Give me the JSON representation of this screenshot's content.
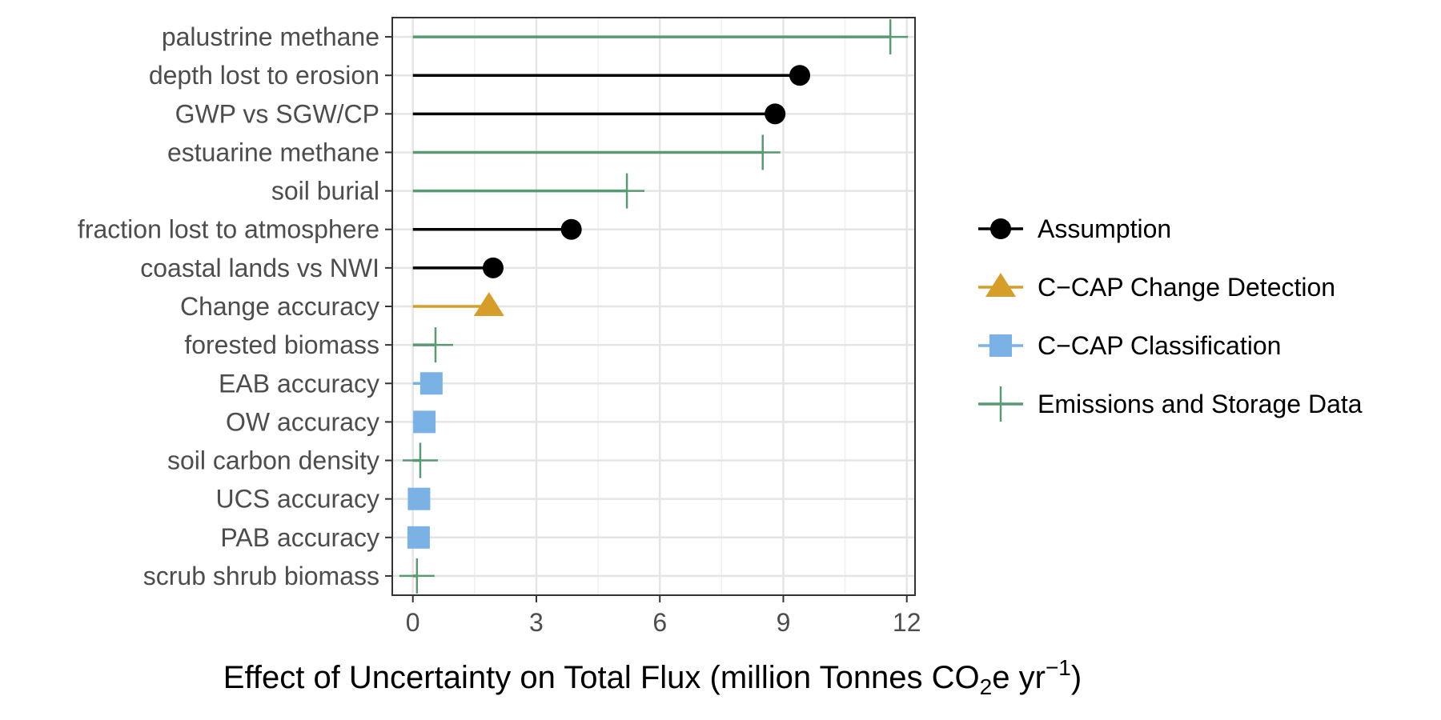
{
  "chart_data": {
    "type": "lollipop",
    "title": "",
    "xlabel": "Effect of Uncertainty on Total Flux (million Tonnes CO2e yr−1)",
    "xlabel_parts": {
      "before": "Effect of Uncertainty on Total Flux (million Tonnes CO",
      "sub": "2",
      "middle": "e yr",
      "sup": "−1",
      "after": ")"
    },
    "ylabel": "",
    "xlim": [
      -0.5,
      12.2
    ],
    "xticks": [
      0,
      3,
      6,
      9,
      12
    ],
    "grid": true,
    "legend_position": "right",
    "categories": [
      "palustrine methane",
      "depth lost to erosion",
      "GWP vs SGW/CP",
      "estuarine methane",
      "soil burial",
      "fraction lost to atmosphere",
      "coastal lands vs NWI",
      "Change accuracy",
      "forested biomass",
      "EAB accuracy",
      "OW accuracy",
      "soil carbon density",
      "UCS accuracy",
      "PAB accuracy",
      "scrub shrub biomass"
    ],
    "points": [
      {
        "category": "palustrine methane",
        "value": 11.6,
        "group": "Emissions and Storage Data"
      },
      {
        "category": "depth lost to erosion",
        "value": 9.4,
        "group": "Assumption"
      },
      {
        "category": "GWP vs SGW/CP",
        "value": 8.8,
        "group": "Assumption"
      },
      {
        "category": "estuarine methane",
        "value": 8.5,
        "group": "Emissions and Storage Data"
      },
      {
        "category": "soil burial",
        "value": 5.2,
        "group": "Emissions and Storage Data"
      },
      {
        "category": "fraction lost to atmosphere",
        "value": 3.85,
        "group": "Assumption"
      },
      {
        "category": "coastal lands vs NWI",
        "value": 1.95,
        "group": "Assumption"
      },
      {
        "category": "Change accuracy",
        "value": 1.85,
        "group": "C-CAP Change Detection"
      },
      {
        "category": "forested biomass",
        "value": 0.55,
        "group": "Emissions and Storage Data"
      },
      {
        "category": "EAB accuracy",
        "value": 0.45,
        "group": "C-CAP Classification"
      },
      {
        "category": "OW accuracy",
        "value": 0.28,
        "group": "C-CAP Classification"
      },
      {
        "category": "soil carbon density",
        "value": 0.18,
        "group": "Emissions and Storage Data"
      },
      {
        "category": "UCS accuracy",
        "value": 0.15,
        "group": "C-CAP Classification"
      },
      {
        "category": "PAB accuracy",
        "value": 0.14,
        "group": "C-CAP Classification"
      },
      {
        "category": "scrub shrub biomass",
        "value": 0.1,
        "group": "Emissions and Storage Data"
      }
    ],
    "series": [
      {
        "name": "Assumption",
        "color": "#000000",
        "marker": "circle"
      },
      {
        "name": "C−CAP Change Detection",
        "key": "C-CAP Change Detection",
        "color": "#d69e29",
        "marker": "triangle"
      },
      {
        "name": "C−CAP Classification",
        "key": "C-CAP Classification",
        "color": "#7ab2e6",
        "marker": "square"
      },
      {
        "name": "Emissions and Storage Data",
        "color": "#5a9a72",
        "marker": "plus"
      }
    ]
  }
}
